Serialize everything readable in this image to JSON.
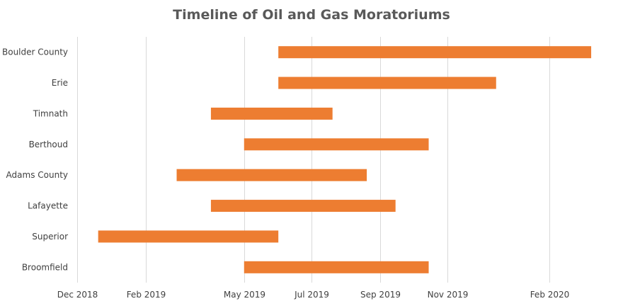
{
  "chart_data": {
    "type": "bar",
    "orientation": "horizontal-gantt",
    "title": "Timeline of Oil and Gas Moratoriums",
    "xlabel": "",
    "ylabel": "",
    "grid": true,
    "bar_color": "#ED7D31",
    "x_range": [
      "2018-12-01",
      "2020-03-01"
    ],
    "x_ticks": [
      {
        "date": "2018-12-01",
        "label": "Dec 2018"
      },
      {
        "date": "2019-02-01",
        "label": "Feb 2019"
      },
      {
        "date": "2019-05-01",
        "label": "May 2019"
      },
      {
        "date": "2019-07-01",
        "label": "Jul 2019"
      },
      {
        "date": "2019-09-01",
        "label": "Sep 2019"
      },
      {
        "date": "2019-11-01",
        "label": "Nov 2019"
      },
      {
        "date": "2020-02-01",
        "label": "Feb 2020"
      }
    ],
    "categories": [
      "Boulder County",
      "Erie",
      "Timnath",
      "Berthoud",
      "Adams County",
      "Lafayette",
      "Superior",
      "Broomfield"
    ],
    "series": [
      {
        "values": [
          {
            "start": "2019-06-01",
            "end": "2020-03-10"
          },
          {
            "start": "2019-06-01",
            "end": "2019-12-15"
          },
          {
            "start": "2019-04-01",
            "end": "2019-07-20"
          },
          {
            "start": "2019-05-01",
            "end": "2019-10-15"
          },
          {
            "start": "2019-03-01",
            "end": "2019-08-20"
          },
          {
            "start": "2019-04-01",
            "end": "2019-09-15"
          },
          {
            "start": "2018-12-20",
            "end": "2019-06-01"
          },
          {
            "start": "2019-05-01",
            "end": "2019-10-15"
          }
        ]
      }
    ]
  }
}
